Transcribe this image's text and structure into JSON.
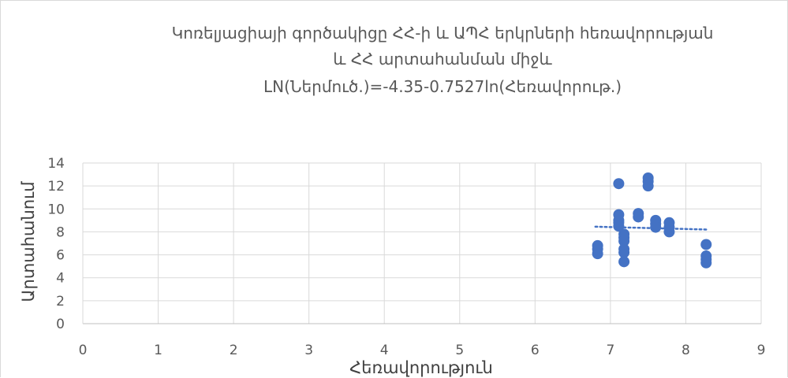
{
  "chart_data": {
    "type": "scatter",
    "title": [
      "Կոռելյացիայի գործակիցը ՀՀ-ի և ԱՊՀ երկրների հեռավորության",
      "և ՀՀ արտահանման միջև",
      "LN(Ներմուծ.)=-4.35-0.7527ln(Հեռավորութ.)"
    ],
    "xlabel": "Հեռավորություն",
    "ylabel": "Արտահանում",
    "xlim": [
      0,
      9
    ],
    "ylim": [
      0,
      14
    ],
    "x_ticks": [
      "0",
      "1",
      "2",
      "3",
      "4",
      "5",
      "6",
      "7",
      "8",
      "9"
    ],
    "y_ticks": [
      "0",
      "2",
      "4",
      "6",
      "8",
      "10",
      "12",
      "14"
    ],
    "grid": true,
    "marker_color": "#4472c4",
    "trendline": {
      "style": "dotted",
      "color": "#4472c4",
      "x": [
        6.8,
        8.3
      ],
      "y": [
        8.45,
        8.2
      ]
    },
    "points": [
      {
        "x": 6.83,
        "y": 6.8
      },
      {
        "x": 6.83,
        "y": 6.5
      },
      {
        "x": 6.83,
        "y": 6.1
      },
      {
        "x": 7.11,
        "y": 12.2
      },
      {
        "x": 7.11,
        "y": 9.5
      },
      {
        "x": 7.11,
        "y": 9.0
      },
      {
        "x": 7.11,
        "y": 8.8
      },
      {
        "x": 7.11,
        "y": 8.5
      },
      {
        "x": 7.18,
        "y": 7.8
      },
      {
        "x": 7.18,
        "y": 7.5
      },
      {
        "x": 7.18,
        "y": 7.2
      },
      {
        "x": 7.18,
        "y": 6.5
      },
      {
        "x": 7.18,
        "y": 6.2
      },
      {
        "x": 7.18,
        "y": 5.4
      },
      {
        "x": 7.37,
        "y": 9.6
      },
      {
        "x": 7.37,
        "y": 9.3
      },
      {
        "x": 7.5,
        "y": 12.7
      },
      {
        "x": 7.5,
        "y": 12.4
      },
      {
        "x": 7.5,
        "y": 12.0
      },
      {
        "x": 7.6,
        "y": 9.0
      },
      {
        "x": 7.6,
        "y": 8.7
      },
      {
        "x": 7.6,
        "y": 8.4
      },
      {
        "x": 7.78,
        "y": 8.8
      },
      {
        "x": 7.78,
        "y": 8.4
      },
      {
        "x": 7.78,
        "y": 8.0
      },
      {
        "x": 8.27,
        "y": 6.9
      },
      {
        "x": 8.27,
        "y": 5.9
      },
      {
        "x": 8.27,
        "y": 5.6
      },
      {
        "x": 8.27,
        "y": 5.3
      }
    ]
  }
}
